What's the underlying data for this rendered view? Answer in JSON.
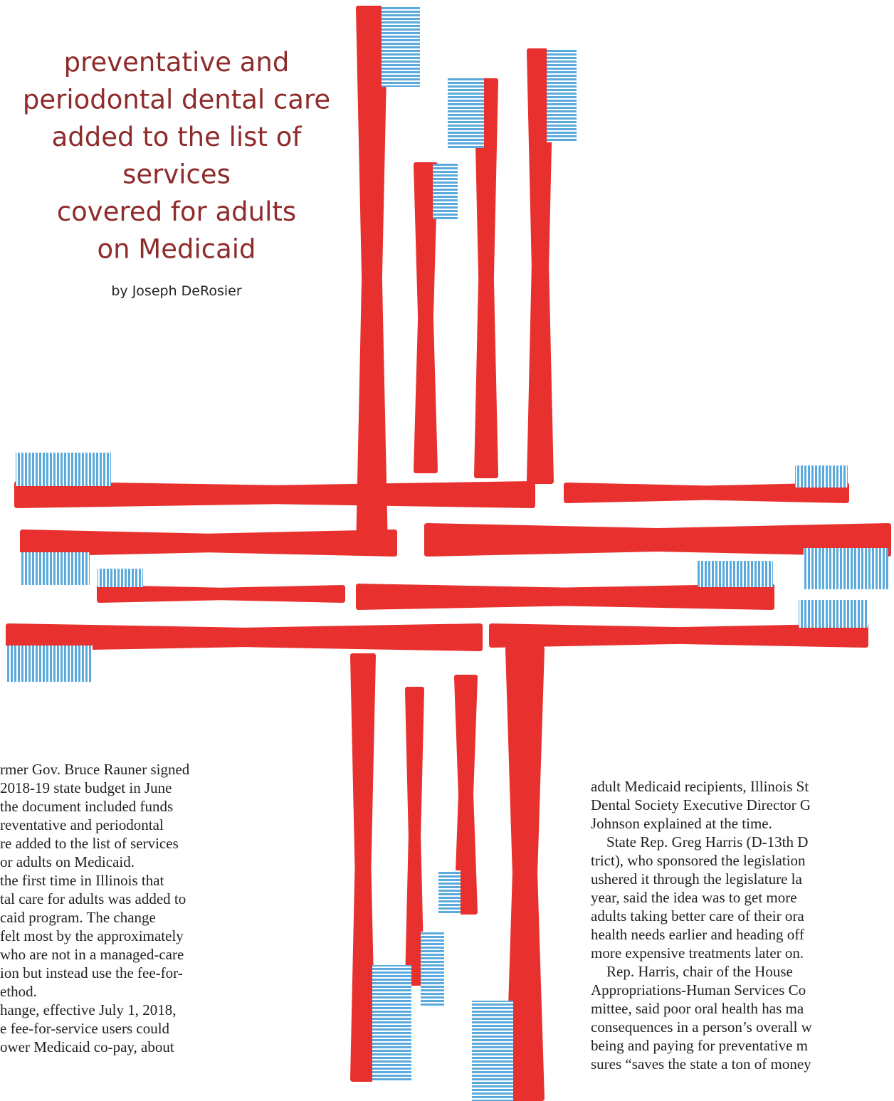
{
  "title": {
    "lines": [
      "preventative and",
      "periodontal dental care",
      "added to the list of",
      "services",
      "covered for adults",
      "on Medicaid"
    ]
  },
  "byline": "by Joseph DeRosier",
  "left_column": {
    "lines": [
      "rmer Gov. Bruce Rauner signed",
      "2018-19 state budget in June",
      "the document included funds",
      "reventative and periodontal",
      "re added to the list of services",
      "or adults on Medicaid.",
      "the first time in Illinois that",
      "tal care for adults was added to",
      "caid program. The change",
      "felt most by the approximately",
      "who are not in a managed-care",
      "ion but instead use the fee-for-",
      "ethod.",
      "hange, effective July 1, 2018,",
      "e fee-for-service users could",
      "ower Medicaid co-pay, about"
    ]
  },
  "right_column": {
    "lines": [
      "adult Medicaid recipients, Illinois St",
      "Dental Society Executive Director G",
      "Johnson explained at the time.",
      "State Rep. Greg Harris (D-13th D",
      "trict), who sponsored the legislation",
      "ushered it through the legislature la",
      "year, said the idea was to get more",
      "adults taking better care of their ora",
      "health needs earlier and heading off",
      "more expensive treatments later on.",
      "Rep. Harris, chair of the House",
      "Appropriations-Human Services Co",
      "mittee, said poor oral health has ma",
      "consequences in a person’s overall w",
      "being and paying for preventative m",
      "sures “saves the state a ton of money"
    ]
  }
}
